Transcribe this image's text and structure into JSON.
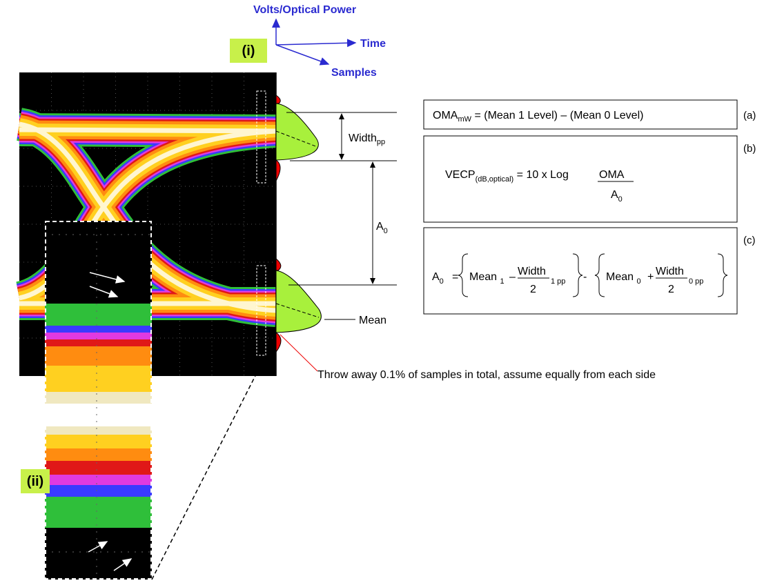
{
  "axes": {
    "vertical": "Volts/Optical Power",
    "horizontal": "Time",
    "depth": "Samples"
  },
  "panels": {
    "eye": "(i)",
    "zoom": "(ii)"
  },
  "annotations": {
    "width": "Width",
    "width_sub": "pp",
    "a0": "A",
    "a0_sub": "0",
    "mean": "Mean",
    "throw_away": "Throw away 0.1% of samples in total, assume equally from each side"
  },
  "equations": {
    "a": {
      "tag": "(a)",
      "lhs": "OMA",
      "lhs_sub": "mW",
      "rhs": " = (Mean 1 Level) – (Mean 0 Level)"
    },
    "b": {
      "tag": "(b)",
      "lhs": "VECP",
      "lhs_sub": "(dB,optical)",
      "mid": " = 10 x Log ",
      "num": "OMA",
      "den": "A",
      "den_sub": "0"
    },
    "c": {
      "tag": "(c)",
      "lhs": "A",
      "lhs_sub": "0",
      "eq": "=",
      "t1": "Mean ",
      "t1_sub": "1",
      "op1": "–",
      "num1": "Width",
      "den1": "2",
      "w1_sub": "1 pp",
      "minus": "-",
      "t2": "Mean ",
      "t2_sub": "0",
      "op2": "+",
      "num2": "Width",
      "den2": "2",
      "w2_sub": "0 pp"
    }
  }
}
